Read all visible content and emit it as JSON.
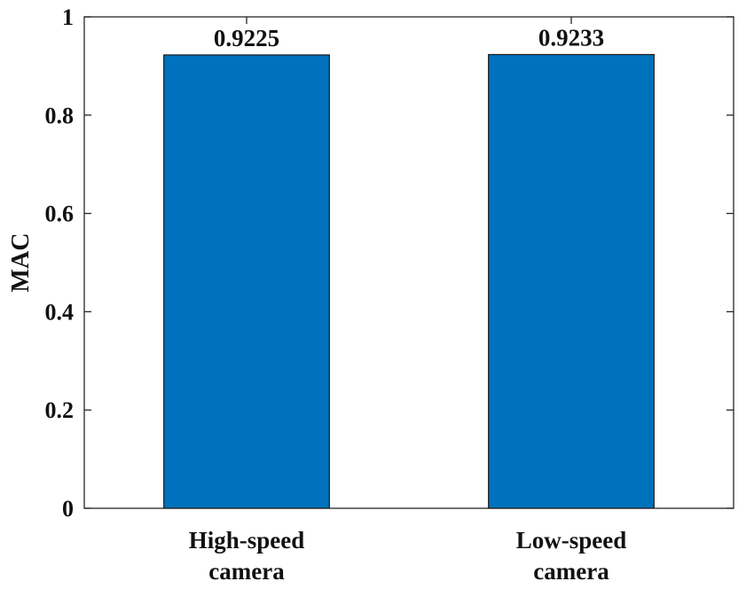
{
  "chart_data": {
    "type": "bar",
    "title": "",
    "xlabel": "",
    "ylabel": "MAC",
    "ylim": [
      0,
      1
    ],
    "yticks": [
      {
        "value": 0,
        "label": "0"
      },
      {
        "value": 0.2,
        "label": "0.2"
      },
      {
        "value": 0.4,
        "label": "0.4"
      },
      {
        "value": 0.6,
        "label": "0.6"
      },
      {
        "value": 0.8,
        "label": "0.8"
      },
      {
        "value": 1,
        "label": "1"
      }
    ],
    "categories": [
      {
        "line1": "High-speed",
        "line2": "camera"
      },
      {
        "line1": "Low-speed",
        "line2": "camera"
      }
    ],
    "values": [
      0.9225,
      0.9233
    ],
    "value_labels": [
      "0.9225",
      "0.9233"
    ],
    "bar_color": "#0072BD",
    "grid": false,
    "legend": "none"
  }
}
